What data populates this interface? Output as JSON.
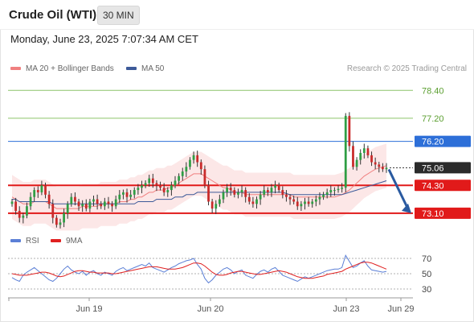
{
  "header": {
    "title": "Crude Oil (WTI)",
    "timeframe": "30 MIN",
    "datetime": "Monday, June 23, 2025 7:07:34 AM CET",
    "copyright": "Research © 2025 Trading Central"
  },
  "legend": {
    "ma20_label": "MA 20 + Bollinger Bands",
    "ma20_color": "#f08080",
    "ma50_label": "MA 50",
    "ma50_color": "#3d5a99",
    "rsi_label": "RSI",
    "rsi_color": "#5b7fd6",
    "nine_ma_label": "9MA",
    "nine_ma_color": "#e02020"
  },
  "chart_data": [
    {
      "type": "candlestick",
      "title": "Crude Oil (WTI)",
      "timeframe": "30 MIN",
      "ylim": [
        72.4,
        79.0
      ],
      "x_labels": [
        "Jun 19",
        "Jun 20",
        "Jun 23",
        "Jun 29"
      ],
      "horizontal_lines": [
        {
          "value": 78.4,
          "label": "78.40",
          "style": "support-green",
          "color": "#8cc46a",
          "text_color": "#5a9e2f"
        },
        {
          "value": 77.2,
          "label": "77.20",
          "style": "support-green",
          "color": "#8cc46a",
          "text_color": "#5a9e2f"
        },
        {
          "value": 76.2,
          "label": "76.20",
          "style": "pivot-blue",
          "color": "#2d6fd8"
        },
        {
          "value": 74.3,
          "label": "74.30",
          "style": "target-red",
          "color": "#e11a1a"
        },
        {
          "value": 73.1,
          "label": "73.10",
          "style": "target-red",
          "color": "#e11a1a"
        }
      ],
      "last_price": {
        "value": 75.06,
        "label": "75.06",
        "color": "#2b2b2b"
      },
      "arrow": {
        "from": 75.06,
        "to": 73.1,
        "direction": "down",
        "color": "#2a5aa0"
      },
      "close": [
        73.6,
        73.2,
        72.9,
        73.0,
        73.4,
        73.8,
        74.1,
        74.0,
        74.3,
        73.9,
        73.5,
        72.9,
        72.6,
        72.7,
        73.1,
        73.5,
        73.8,
        73.6,
        73.4,
        73.5,
        73.3,
        73.6,
        73.7,
        73.5,
        73.4,
        73.6,
        73.5,
        73.4,
        73.7,
        73.9,
        74.0,
        73.8,
        73.9,
        74.1,
        74.2,
        74.3,
        74.4,
        74.6,
        74.4,
        74.3,
        74.2,
        74.0,
        74.1,
        74.3,
        74.5,
        74.7,
        74.9,
        75.1,
        75.4,
        75.6,
        75.3,
        75.0,
        74.3,
        73.6,
        73.3,
        73.5,
        73.7,
        74.0,
        74.2,
        74.1,
        73.9,
        74.0,
        74.1,
        73.8,
        73.6,
        73.5,
        73.7,
        73.9,
        74.1,
        74.0,
        74.2,
        74.3,
        74.1,
        73.9,
        73.8,
        73.7,
        73.6,
        73.4,
        73.5,
        73.6,
        73.5,
        73.6,
        73.7,
        73.8,
        73.9,
        74.0,
        74.1,
        74.1,
        74.15,
        74.2,
        77.3,
        76.0,
        75.1,
        75.4,
        75.7,
        75.9,
        75.6,
        75.3,
        75.2,
        75.1,
        75.0,
        75.06
      ],
      "ma20": [
        73.8,
        73.7,
        73.6,
        73.5,
        73.5,
        73.5,
        73.6,
        73.6,
        73.6,
        73.6,
        73.5,
        73.4,
        73.3,
        73.3,
        73.3,
        73.3,
        73.3,
        73.3,
        73.3,
        73.4,
        73.4,
        73.4,
        73.4,
        73.4,
        73.5,
        73.5,
        73.5,
        73.5,
        73.5,
        73.6,
        73.6,
        73.6,
        73.7,
        73.7,
        73.8,
        73.8,
        73.9,
        74.0,
        74.0,
        74.1,
        74.1,
        74.1,
        74.2,
        74.2,
        74.3,
        74.4,
        74.5,
        74.6,
        74.7,
        74.8,
        74.8,
        74.8,
        74.7,
        74.6,
        74.5,
        74.4,
        74.3,
        74.2,
        74.2,
        74.1,
        74.0,
        74.0,
        74.0,
        73.9,
        73.9,
        73.9,
        73.9,
        73.9,
        73.9,
        73.9,
        73.9,
        73.9,
        73.9,
        73.9,
        73.9,
        73.9,
        73.8,
        73.8,
        73.8,
        73.8,
        73.8,
        73.8,
        73.8,
        73.8,
        73.8,
        73.8,
        73.8,
        73.8,
        73.85,
        73.9,
        74.0,
        74.1,
        74.25,
        74.4,
        74.55,
        74.7,
        74.8,
        74.9,
        75.0,
        75.05,
        75.1,
        75.15
      ],
      "ma50": [
        73.7,
        73.7,
        73.6,
        73.6,
        73.6,
        73.6,
        73.6,
        73.6,
        73.6,
        73.6,
        73.6,
        73.5,
        73.5,
        73.5,
        73.5,
        73.5,
        73.5,
        73.5,
        73.5,
        73.5,
        73.5,
        73.5,
        73.5,
        73.5,
        73.5,
        73.5,
        73.5,
        73.5,
        73.5,
        73.5,
        73.5,
        73.5,
        73.5,
        73.5,
        73.6,
        73.6,
        73.6,
        73.6,
        73.6,
        73.7,
        73.7,
        73.7,
        73.7,
        73.7,
        73.8,
        73.8,
        73.8,
        73.9,
        73.9,
        73.9,
        74.0,
        74.0,
        74.0,
        74.0,
        74.0,
        74.0,
        74.0,
        74.0,
        74.0,
        74.0,
        74.0,
        74.0,
        74.0,
        74.0,
        74.0,
        74.0,
        74.0,
        74.0,
        74.0,
        74.0,
        74.0,
        74.0,
        74.0,
        74.0,
        73.95,
        73.9,
        73.9,
        73.9,
        73.9,
        73.9,
        73.9,
        73.9,
        73.9,
        73.9,
        73.9,
        73.9,
        73.9,
        73.9,
        73.9,
        73.9,
        73.95,
        74.0,
        74.05,
        74.1,
        74.15,
        74.2,
        74.25,
        74.3,
        74.35,
        74.4,
        74.45,
        74.5
      ]
    },
    {
      "type": "line",
      "name": "RSI",
      "ylim": [
        20,
        80
      ],
      "y_ticks": [
        70,
        50,
        30
      ],
      "rsi": [
        45,
        42,
        40,
        48,
        52,
        55,
        58,
        54,
        50,
        46,
        42,
        40,
        44,
        50,
        56,
        60,
        55,
        52,
        50,
        53,
        48,
        52,
        54,
        50,
        48,
        52,
        50,
        48,
        53,
        56,
        58,
        54,
        56,
        58,
        60,
        62,
        60,
        64,
        58,
        56,
        54,
        52,
        55,
        58,
        60,
        63,
        65,
        67,
        68,
        70,
        62,
        56,
        44,
        38,
        42,
        48,
        52,
        56,
        58,
        55,
        50,
        53,
        55,
        48,
        46,
        44,
        49,
        53,
        55,
        52,
        56,
        58,
        53,
        48,
        46,
        44,
        42,
        40,
        43,
        46,
        44,
        46,
        48,
        50,
        52,
        54,
        55,
        56,
        56,
        58,
        74,
        66,
        58,
        60,
        64,
        67,
        60,
        55,
        54,
        53,
        52,
        53
      ],
      "nine_ma": [
        50,
        49,
        48,
        48,
        48,
        49,
        50,
        51,
        52,
        52,
        51,
        49,
        47,
        46,
        47,
        49,
        51,
        53,
        54,
        54,
        53,
        52,
        52,
        51,
        51,
        51,
        51,
        50,
        50,
        51,
        52,
        53,
        54,
        55,
        56,
        57,
        58,
        59,
        59,
        59,
        58,
        57,
        56,
        56,
        56,
        57,
        58,
        60,
        62,
        64,
        64,
        63,
        60,
        56,
        52,
        49,
        48,
        48,
        49,
        51,
        52,
        53,
        53,
        52,
        51,
        50,
        49,
        49,
        50,
        51,
        52,
        53,
        54,
        53,
        52,
        50,
        48,
        46,
        45,
        44,
        44,
        44,
        45,
        46,
        47,
        49,
        50,
        51,
        52,
        53,
        56,
        58,
        60,
        62,
        64,
        65,
        65,
        64,
        62,
        60,
        58,
        56
      ]
    }
  ]
}
